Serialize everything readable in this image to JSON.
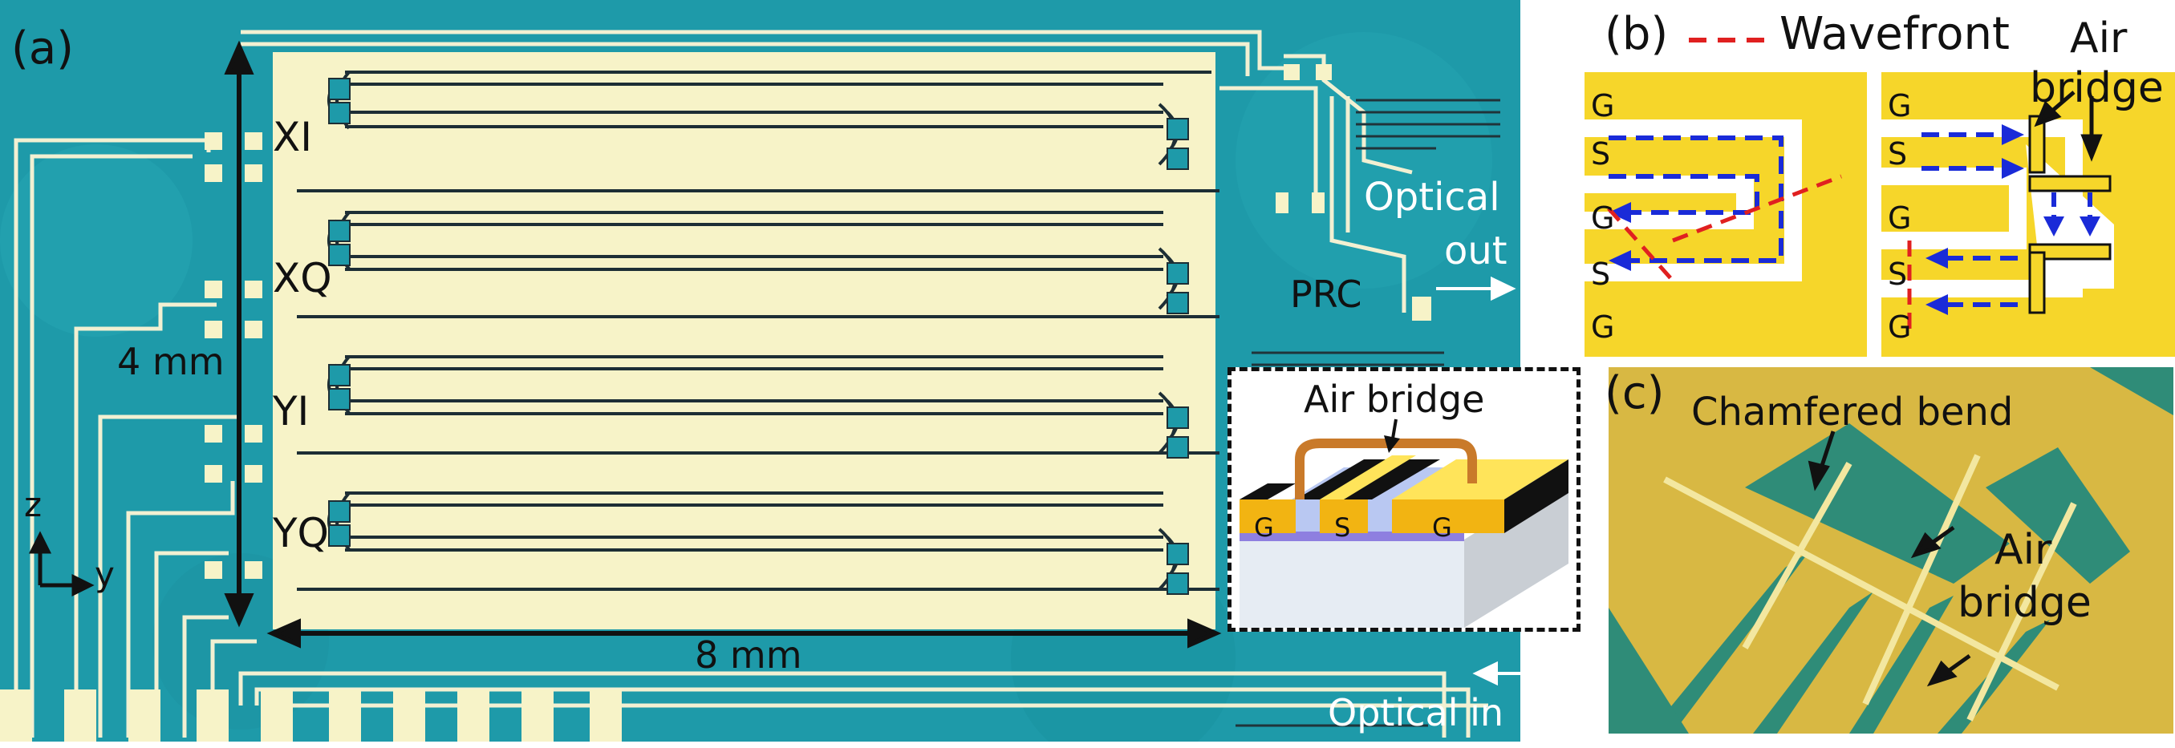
{
  "panel_a": {
    "label": "(a)",
    "row_labels": [
      "XI",
      "XQ",
      "YI",
      "YQ"
    ],
    "height_dim": "4 mm",
    "width_dim": "8 mm",
    "axis_z": "z",
    "axis_y": "y",
    "optical_out": [
      "Optical",
      "out"
    ],
    "prc": "PRC",
    "optical_in": "Optical in",
    "inset_title": "Air bridge",
    "inset_g1": "G",
    "inset_s": "S",
    "inset_g2": "G"
  },
  "panel_b": {
    "label": "(b)",
    "legend": "Wavefront",
    "left_labels": [
      "G",
      "S",
      "G",
      "S",
      "G"
    ],
    "right_labels": [
      "G",
      "S",
      "G",
      "S",
      "G"
    ],
    "air_bridge": [
      "Air",
      "bridge"
    ]
  },
  "panel_c": {
    "label": "(c)",
    "chamfered": "Chamfered bend",
    "air_bridge": [
      "Air",
      "bridge"
    ]
  },
  "colors": {
    "substrate": "#1e9aa9",
    "electrode": "#f7f3c8",
    "gold": "#f6d62a",
    "wavefront": "#e02020",
    "field_arrow": "#1a2bd8"
  }
}
